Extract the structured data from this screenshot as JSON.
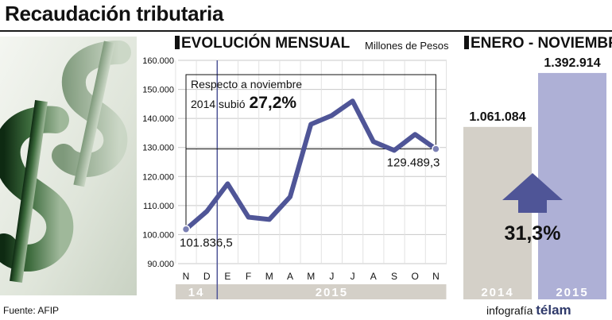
{
  "title": "Recaudación tributaria",
  "source": "Fuente: AFIP",
  "credit": {
    "prefix": "infografía",
    "brand": "télam"
  },
  "colors": {
    "line": "#4f5597",
    "marker": "#7b80b4",
    "bar_2014": "#d4d0c8",
    "bar_2015": "#aeb0d6",
    "arrow": "#4f5597",
    "strip": "#d4d0c8",
    "year_text": "#ffffff"
  },
  "icons": {
    "photo": "dollar-sign-icon",
    "arrow": "arrow-up-icon"
  },
  "chart_data": [
    {
      "type": "line",
      "title": "EVOLUCIÓN MENSUAL",
      "units": "Millones de Pesos",
      "x": [
        "N",
        "D",
        "E",
        "F",
        "M",
        "A",
        "M",
        "J",
        "J",
        "A",
        "S",
        "O",
        "N"
      ],
      "year_groups": [
        {
          "label": "14",
          "months": 2
        },
        {
          "label": "2015",
          "months": 11
        }
      ],
      "values": [
        101836.5,
        108000,
        117500,
        106000,
        105200,
        113000,
        138000,
        141000,
        146000,
        132000,
        129000,
        134500,
        129489.3
      ],
      "ylim": [
        90000,
        160000
      ],
      "yticks": [
        {
          "value": 90000,
          "label": "90.000"
        },
        {
          "value": 100000,
          "label": "100.000"
        },
        {
          "value": 110000,
          "label": "110.000"
        },
        {
          "value": 120000,
          "label": "120.000"
        },
        {
          "value": 130000,
          "label": "130.000"
        },
        {
          "value": 140000,
          "label": "140.000"
        },
        {
          "value": 150000,
          "label": "150.000"
        },
        {
          "value": 160000,
          "label": "160.000"
        }
      ],
      "labels": {
        "first": "101.836,5",
        "last": "129.489,3"
      },
      "annotation": {
        "line1": "Respecto a noviembre",
        "line2": "2014 subió",
        "value": "27,2%"
      },
      "grid": true
    },
    {
      "type": "bar",
      "title": "ENERO - NOVIEMBRE",
      "categories": [
        "2014",
        "2015"
      ],
      "values": [
        1061084,
        1392914
      ],
      "value_labels": [
        "1.061.084",
        "1.392.914"
      ],
      "change": "31,3%",
      "ylim": [
        0,
        1500000
      ]
    }
  ]
}
